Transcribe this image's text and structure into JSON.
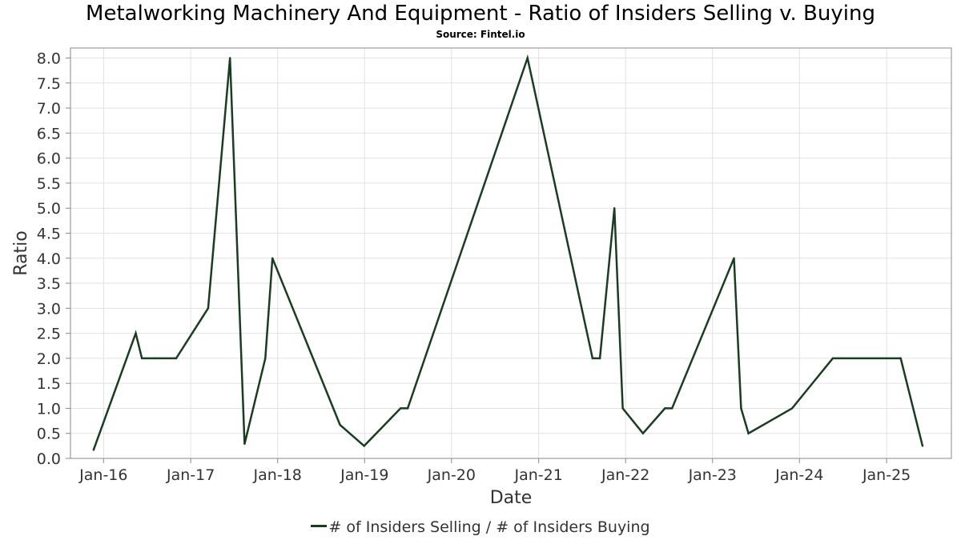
{
  "chart_data": {
    "type": "line",
    "title": "Metalworking Machinery And Equipment - Ratio of Insiders Selling v. Buying",
    "subtitle": "Source: Fintel.io",
    "xlabel": "Date",
    "ylabel": "Ratio",
    "x_tick_labels": [
      "Jan-16",
      "Jan-17",
      "Jan-18",
      "Jan-19",
      "Jan-20",
      "Jan-21",
      "Jan-22",
      "Jan-23",
      "Jan-24",
      "Jan-25"
    ],
    "y_tick_labels": [
      "0.0",
      "0.5",
      "1.0",
      "1.5",
      "2.0",
      "2.5",
      "3.0",
      "3.5",
      "4.0",
      "4.5",
      "5.0",
      "5.5",
      "6.0",
      "6.5",
      "7.0",
      "7.5",
      "8.0"
    ],
    "ylim": [
      0,
      8.2
    ],
    "xlim": [
      "2015-08-15",
      "2025-09-30"
    ],
    "grid": true,
    "legend_position": "bottom",
    "line_color": "#1a3d22",
    "series": [
      {
        "name": "# of Insiders Selling / # of Insiders Buying",
        "points": [
          {
            "x": "2015-11-20",
            "y": 0.17
          },
          {
            "x": "2016-05-15",
            "y": 2.5
          },
          {
            "x": "2016-06-10",
            "y": 2.0
          },
          {
            "x": "2016-08-01",
            "y": 2.0
          },
          {
            "x": "2016-11-01",
            "y": 2.0
          },
          {
            "x": "2017-03-15",
            "y": 3.0
          },
          {
            "x": "2017-06-15",
            "y": 8.0
          },
          {
            "x": "2017-08-15",
            "y": 0.29
          },
          {
            "x": "2017-11-10",
            "y": 2.0
          },
          {
            "x": "2017-12-10",
            "y": 4.0
          },
          {
            "x": "2018-09-20",
            "y": 0.67
          },
          {
            "x": "2018-12-30",
            "y": 0.25
          },
          {
            "x": "2019-06-01",
            "y": 1.0
          },
          {
            "x": "2019-07-01",
            "y": 1.0
          },
          {
            "x": "2020-11-15",
            "y": 8.0
          },
          {
            "x": "2021-08-15",
            "y": 2.0
          },
          {
            "x": "2021-09-15",
            "y": 2.0
          },
          {
            "x": "2021-11-15",
            "y": 5.0
          },
          {
            "x": "2021-12-20",
            "y": 1.0
          },
          {
            "x": "2022-03-15",
            "y": 0.5
          },
          {
            "x": "2022-06-15",
            "y": 1.0
          },
          {
            "x": "2022-07-15",
            "y": 1.0
          },
          {
            "x": "2023-04-01",
            "y": 4.0
          },
          {
            "x": "2023-05-01",
            "y": 1.0
          },
          {
            "x": "2023-06-01",
            "y": 0.5
          },
          {
            "x": "2023-12-01",
            "y": 1.0
          },
          {
            "x": "2024-05-20",
            "y": 2.0
          },
          {
            "x": "2024-06-15",
            "y": 2.0
          },
          {
            "x": "2025-03-01",
            "y": 2.0
          },
          {
            "x": "2025-06-01",
            "y": 0.25
          }
        ]
      }
    ]
  }
}
